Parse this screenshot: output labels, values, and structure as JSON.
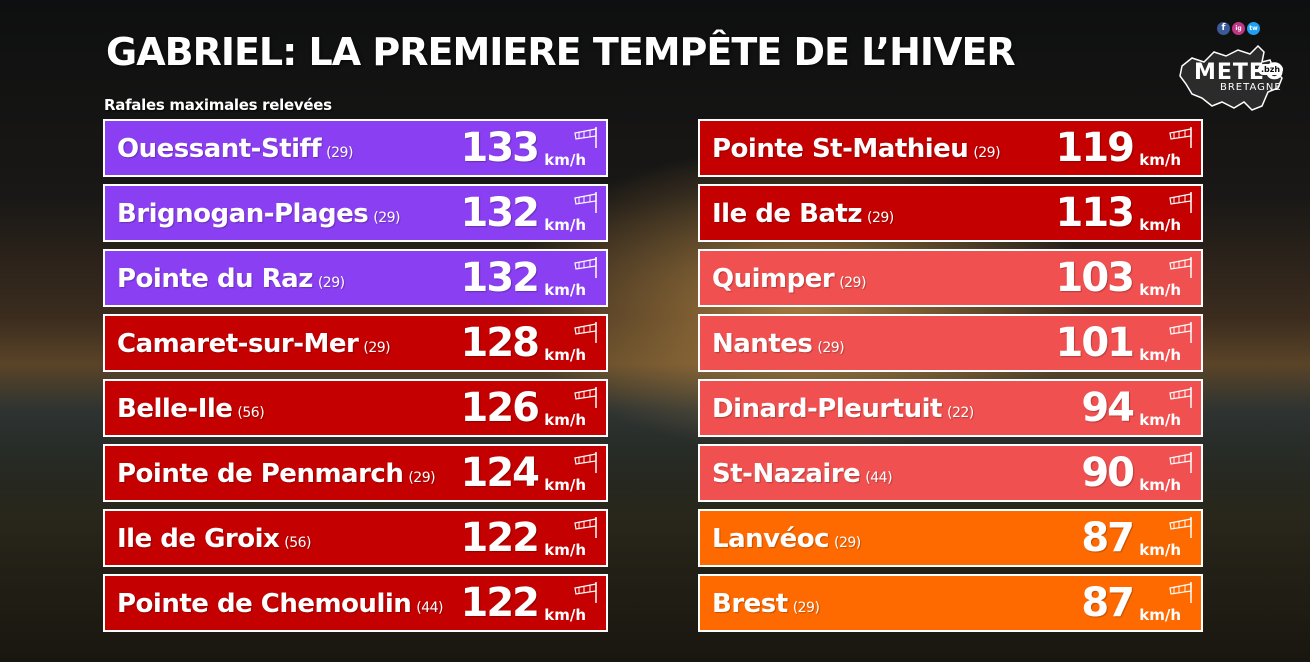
{
  "title": "GABRIEL: LA PREMIERE TEMPÊTE DE L’HIVER",
  "subtitle": "Rafales maximales relevées",
  "unit": "km/h",
  "logo": {
    "name": "METEO",
    "sub": "BRETAGNE",
    "tag": ".bzh",
    "social": [
      "f",
      "ig",
      "tw"
    ]
  },
  "colors": {
    "purple": "#8b3ff2",
    "red": "#c40000",
    "salmon": "#f0504f",
    "orange": "#ff6a00"
  },
  "left_column": [
    {
      "name": "Ouessant-Stiff",
      "dept": "(29)",
      "value": "133",
      "level": "purple"
    },
    {
      "name": "Brignogan-Plages",
      "dept": "(29)",
      "value": "132",
      "level": "purple"
    },
    {
      "name": "Pointe du Raz",
      "dept": "(29)",
      "value": "132",
      "level": "purple"
    },
    {
      "name": "Camaret-sur-Mer",
      "dept": "(29)",
      "value": "128",
      "level": "red"
    },
    {
      "name": "Belle-Ile",
      "dept": "(56)",
      "value": "126",
      "level": "red"
    },
    {
      "name": "Pointe de Penmarch",
      "dept": "(29)",
      "value": "124",
      "level": "red"
    },
    {
      "name": "Ile de Groix",
      "dept": "(56)",
      "value": "122",
      "level": "red"
    },
    {
      "name": "Pointe de Chemoulin",
      "dept": "(44)",
      "value": "122",
      "level": "red"
    }
  ],
  "right_column": [
    {
      "name": "Pointe St-Mathieu",
      "dept": "(29)",
      "value": "119",
      "level": "red"
    },
    {
      "name": "Ile de Batz",
      "dept": "(29)",
      "value": "113",
      "level": "red"
    },
    {
      "name": "Quimper",
      "dept": "(29)",
      "value": "103",
      "level": "salmon"
    },
    {
      "name": "Nantes",
      "dept": "(29)",
      "value": "101",
      "level": "salmon"
    },
    {
      "name": "Dinard-Pleurtuit",
      "dept": "(22)",
      "value": "94",
      "level": "salmon"
    },
    {
      "name": "St-Nazaire",
      "dept": "(44)",
      "value": "90",
      "level": "salmon"
    },
    {
      "name": "Lanvéoc",
      "dept": "(29)",
      "value": "87",
      "level": "orange"
    },
    {
      "name": "Brest",
      "dept": "(29)",
      "value": "87",
      "level": "orange"
    }
  ]
}
